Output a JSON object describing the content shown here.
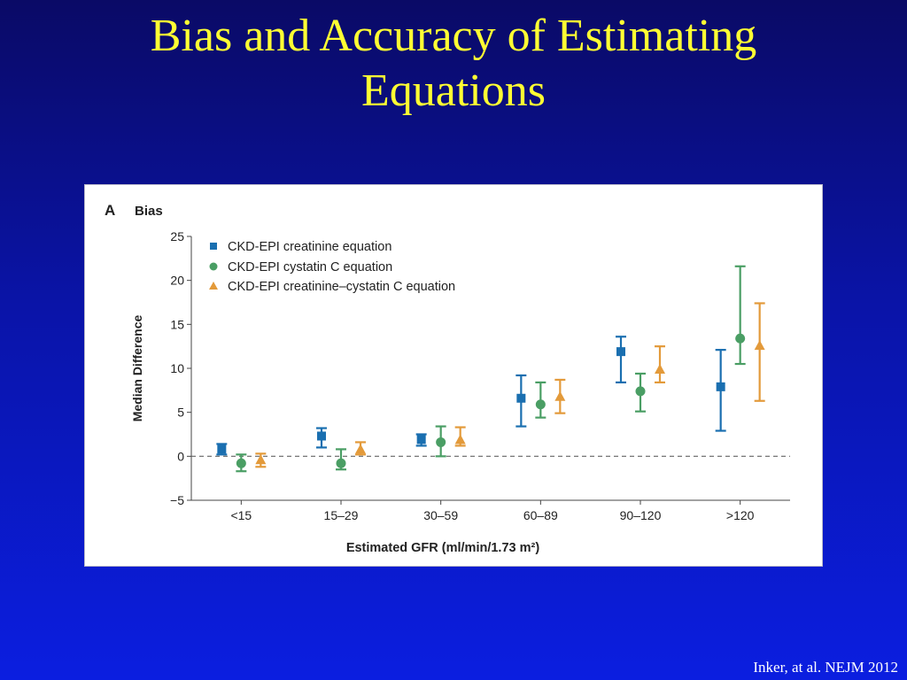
{
  "slide": {
    "title_line1": "Bias and Accuracy of Estimating",
    "title_line2": "Equations",
    "citation": "Inker, at al. NEJM 2012"
  },
  "colors": {
    "background": "#0b1ee0",
    "title": "#ffff33",
    "creatinine": "#1a6fb0",
    "cystatin": "#4a9e64",
    "combined": "#e39a3a"
  },
  "chart_data": {
    "type": "scatter",
    "panel_letter": "A",
    "title": "Bias",
    "xlabel": "Estimated GFR (ml/min/1.73 m²)",
    "ylabel": "Median Difference",
    "ylim": [
      -5,
      25
    ],
    "yticks": [
      -5,
      0,
      5,
      10,
      15,
      20,
      25
    ],
    "ytick_labels": [
      "−5",
      "0",
      "5",
      "10",
      "15",
      "20",
      "25"
    ],
    "categories": [
      "<15",
      "15–29",
      "30–59",
      "60–89",
      "90–120",
      ">120"
    ],
    "reference_line": 0,
    "grid": false,
    "legend_position": "top-left",
    "series": [
      {
        "name": "CKD-EPI creatinine equation",
        "marker": "square",
        "color": "#1a6fb0",
        "values": [
          0.8,
          2.3,
          1.9,
          6.6,
          11.9,
          7.9
        ],
        "lower": [
          0.2,
          1.0,
          1.2,
          3.4,
          8.4,
          2.9
        ],
        "upper": [
          1.4,
          3.2,
          2.5,
          9.2,
          13.6,
          12.1
        ]
      },
      {
        "name": "CKD-EPI cystatin C equation",
        "marker": "circle",
        "color": "#4a9e64",
        "values": [
          -0.8,
          -0.8,
          1.6,
          5.9,
          7.4,
          13.4
        ],
        "lower": [
          -1.7,
          -1.5,
          0.0,
          4.4,
          5.1,
          10.5
        ],
        "upper": [
          0.2,
          0.8,
          3.4,
          8.4,
          9.4,
          21.6
        ]
      },
      {
        "name": "CKD-EPI creatinine–cystatin C equation",
        "marker": "triangle",
        "color": "#e39a3a",
        "values": [
          -0.4,
          0.8,
          1.9,
          6.8,
          9.9,
          12.6
        ],
        "lower": [
          -1.2,
          0.2,
          1.2,
          4.9,
          8.4,
          6.3
        ],
        "upper": [
          0.3,
          1.6,
          3.3,
          8.7,
          12.5,
          17.4
        ]
      }
    ]
  }
}
